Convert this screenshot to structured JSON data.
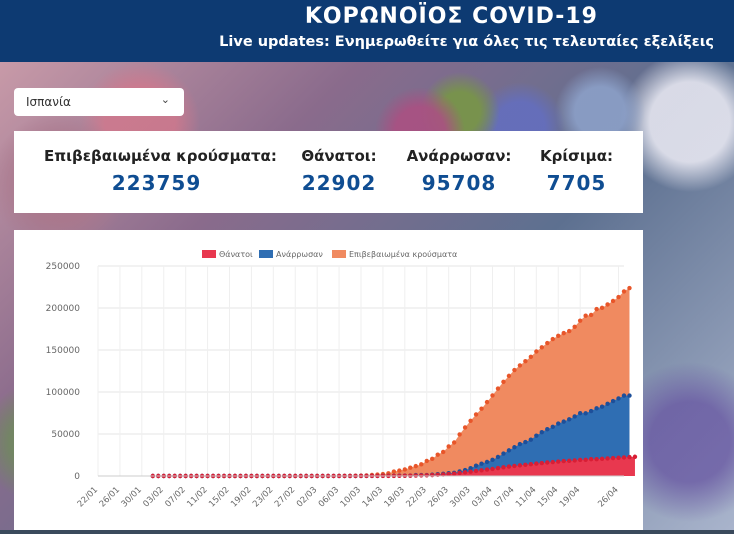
{
  "header": {
    "title": "ΚΟΡΩΝΟΪΟΣ COVID-19",
    "subtitle": "Live updates: Ενημερωθείτε για όλες τις τελευταίες εξελίξεις"
  },
  "country_select": {
    "selected": "Ισπανία"
  },
  "stats": [
    {
      "label": "Επιβεβαιωμένα κρούσματα:",
      "value": "223759"
    },
    {
      "label": "Θάνατοι:",
      "value": "22902"
    },
    {
      "label": "Ανάρρωσαν:",
      "value": "95708"
    },
    {
      "label": "Κρίσιμα:",
      "value": "7705"
    }
  ],
  "colors": {
    "header_bg": "#0d3a72",
    "deaths": "#e8384f",
    "recovered": "#2f6eb3",
    "confirmed": "#f08a60",
    "value_text": "#0f4d92"
  },
  "chart_data": {
    "type": "area",
    "legend": [
      "Θάνατοι",
      "Ανάρρωσαν",
      "Επιβεβαιωμένα κρούσματα"
    ],
    "x_ticks": [
      "22/01",
      "26/01",
      "30/01",
      "03/02",
      "07/02",
      "11/02",
      "15/02",
      "19/02",
      "23/02",
      "27/02",
      "02/03",
      "06/03",
      "10/03",
      "14/03",
      "18/03",
      "22/03",
      "26/03",
      "30/03",
      "03/04",
      "07/04",
      "11/04",
      "15/04",
      "19/04",
      "26/04"
    ],
    "y_ticks": [
      "0",
      "50000",
      "100000",
      "150000",
      "200000",
      "250000"
    ],
    "ylim": [
      0,
      250000
    ],
    "start_day_index": 10,
    "series": [
      {
        "name": "Επιβεβαιωμένα κρούσματα",
        "values": [
          0,
          0,
          0,
          0,
          0,
          0,
          0,
          0,
          0,
          0,
          0,
          0,
          0,
          0,
          0,
          0,
          0,
          0,
          0,
          0,
          0,
          0,
          1,
          2,
          2,
          2,
          2,
          2,
          2,
          2,
          2,
          2,
          2,
          2,
          2,
          2,
          2,
          2,
          2,
          15,
          25,
          45,
          84,
          120,
          165,
          228,
          282,
          401,
          525,
          674,
          1231,
          1695,
          2277,
          3146,
          5232,
          6391,
          7798,
          9942,
          11748,
          13910,
          17963,
          20410,
          25374,
          28603,
          35136,
          39885,
          49515,
          57786,
          65719,
          73235,
          80110,
          87956,
          95923,
          104118,
          112065,
          119199,
          126168,
          131646,
          136675,
          141942,
          148220,
          153222,
          158273,
          163027,
          166831,
          170099,
          172541,
          177644,
          184948,
          190839,
          191726,
          198674,
          200210,
          204178,
          208389,
          213024,
          219764,
          223759
        ]
      },
      {
        "name": "Ανάρρωσαν",
        "values": [
          0,
          0,
          0,
          0,
          0,
          0,
          0,
          0,
          0,
          0,
          0,
          0,
          0,
          0,
          0,
          0,
          0,
          0,
          0,
          0,
          0,
          0,
          0,
          0,
          0,
          0,
          0,
          0,
          0,
          0,
          0,
          0,
          0,
          0,
          0,
          0,
          0,
          0,
          0,
          2,
          2,
          2,
          2,
          2,
          2,
          2,
          2,
          2,
          30,
          30,
          32,
          32,
          183,
          183,
          193,
          517,
          517,
          530,
          1028,
          1081,
          1107,
          1588,
          2125,
          2575,
          3355,
          3794,
          5367,
          7015,
          9357,
          12285,
          14709,
          16780,
          19259,
          22647,
          26743,
          30513,
          34219,
          38080,
          40437,
          43208,
          48021,
          52165,
          55668,
          58553,
          62391,
          64727,
          67504,
          70853,
          74797,
          74662,
          77357,
          80587,
          82514,
          85915,
          89250,
          92355,
          95708,
          95708
        ]
      },
      {
        "name": "Θάνατοι",
        "values": [
          0,
          0,
          0,
          0,
          0,
          0,
          0,
          0,
          0,
          0,
          0,
          0,
          0,
          0,
          0,
          0,
          0,
          0,
          0,
          0,
          0,
          0,
          0,
          0,
          0,
          0,
          0,
          0,
          0,
          0,
          0,
          0,
          0,
          0,
          0,
          0,
          0,
          0,
          0,
          0,
          0,
          0,
          0,
          0,
          0,
          1,
          3,
          8,
          10,
          17,
          28,
          35,
          54,
          55,
          133,
          195,
          289,
          342,
          533,
          623,
          830,
          1043,
          1375,
          1772,
          2311,
          2808,
          3647,
          4365,
          5138,
          5982,
          6803,
          7716,
          8464,
          9387,
          10348,
          11198,
          11947,
          12641,
          13341,
          14045,
          14792,
          15447,
          16081,
          16606,
          17209,
          17756,
          18056,
          18579,
          19130,
          19315,
          20002,
          20043,
          20453,
          20852,
          21282,
          21717,
          22157,
          22524,
          22902
        ]
      }
    ]
  }
}
